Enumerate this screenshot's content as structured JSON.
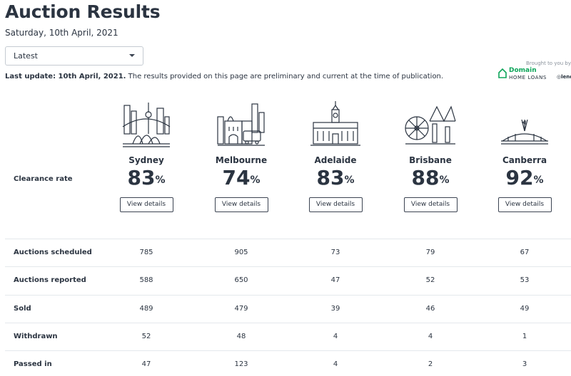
{
  "page": {
    "title": "Auction Results",
    "date": "Saturday, 10th April, 2021"
  },
  "filter": {
    "selected": "Latest"
  },
  "sponsor": {
    "brought_by": "Brought to you by",
    "brand": "Domain",
    "product": "HOME LOANS",
    "partner": "lend"
  },
  "update": {
    "bold": "Last update: 10th April, 2021.",
    "text": " The results provided on this page are preliminary and current at the time of publication."
  },
  "clearance_label": "Clearance rate",
  "button_label": "View details",
  "percent_sign": "%",
  "cities": [
    {
      "name": "Sydney",
      "rate": "83",
      "icon": "sydney-skyline-icon"
    },
    {
      "name": "Melbourne",
      "rate": "74",
      "icon": "melbourne-skyline-icon"
    },
    {
      "name": "Adelaide",
      "rate": "83",
      "icon": "adelaide-skyline-icon"
    },
    {
      "name": "Brisbane",
      "rate": "88",
      "icon": "brisbane-skyline-icon"
    },
    {
      "name": "Canberra",
      "rate": "92",
      "icon": "canberra-skyline-icon"
    }
  ],
  "rows": [
    {
      "label": "Auctions scheduled",
      "values": [
        "785",
        "905",
        "73",
        "79",
        "67"
      ]
    },
    {
      "label": "Auctions reported",
      "values": [
        "588",
        "650",
        "47",
        "52",
        "53"
      ]
    },
    {
      "label": "Sold",
      "values": [
        "489",
        "479",
        "39",
        "46",
        "49"
      ]
    },
    {
      "label": "Withdrawn",
      "values": [
        "52",
        "48",
        "4",
        "4",
        "1"
      ]
    },
    {
      "label": "Passed in",
      "values": [
        "47",
        "123",
        "4",
        "2",
        "3"
      ]
    }
  ],
  "colors": {
    "text": "#2b3441",
    "brand_green": "#0ea55a",
    "divider": "#e4e8ec"
  }
}
